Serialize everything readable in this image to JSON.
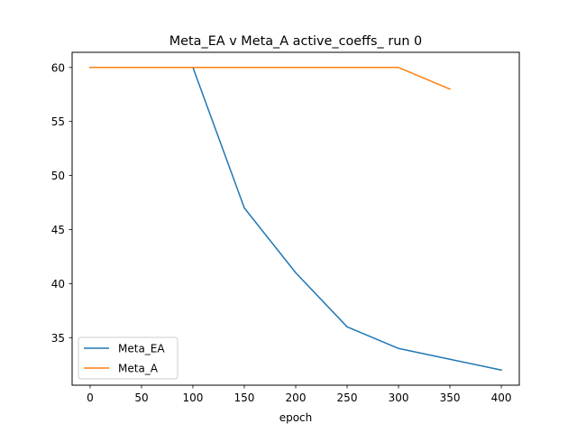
{
  "chart_data": {
    "type": "line",
    "title": "Meta_EA v Meta_A active_coeffs_ run 0",
    "xlabel": "epoch",
    "ylabel": "",
    "xlim": [
      -17.5,
      417.5
    ],
    "ylim": [
      30.6,
      61.4
    ],
    "xticks": [
      0,
      50,
      100,
      150,
      200,
      250,
      300,
      350,
      400
    ],
    "yticks": [
      35,
      40,
      45,
      50,
      55,
      60
    ],
    "grid": false,
    "legend_position": "lower-left",
    "series": [
      {
        "name": "Meta_EA",
        "color": "#1f77b4",
        "x": [
          0,
          50,
          100,
          150,
          200,
          250,
          300,
          350,
          400
        ],
        "y": [
          60,
          60,
          60,
          47,
          41,
          36,
          34,
          33,
          32
        ]
      },
      {
        "name": "Meta_A",
        "color": "#ff7f0e",
        "x": [
          0,
          50,
          100,
          150,
          200,
          250,
          300,
          350
        ],
        "y": [
          60,
          60,
          60,
          60,
          60,
          60,
          60,
          58
        ]
      }
    ]
  }
}
